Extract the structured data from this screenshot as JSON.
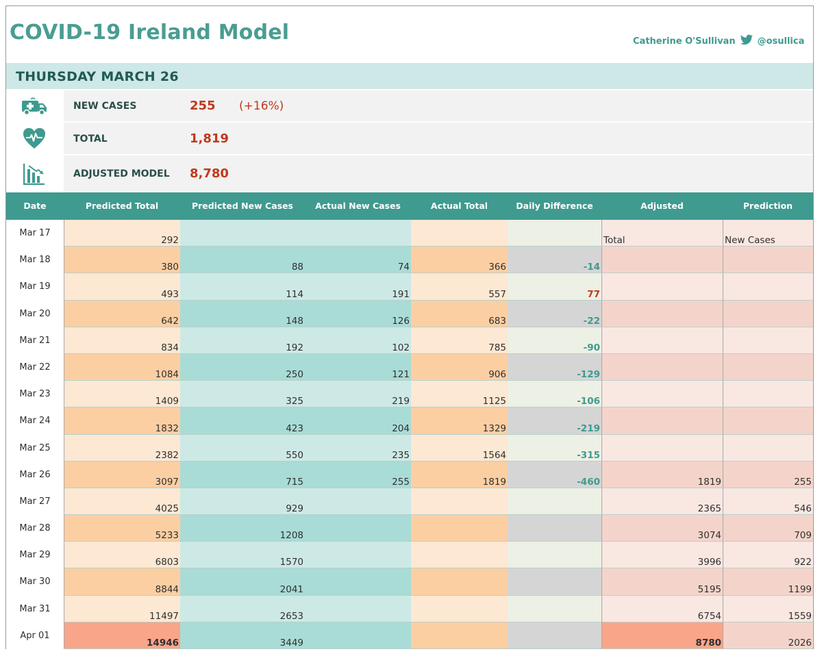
{
  "title": "COVID-19 Ireland Model",
  "author": {
    "name": "Catherine O'Sullivan",
    "handle": "@osullica",
    "icon": "twitter-bird-icon"
  },
  "date_banner": "THURSDAY MARCH 26",
  "kpis": [
    {
      "icon": "ambulance-icon",
      "label": "NEW CASES",
      "value": "255",
      "change": "(+16%)"
    },
    {
      "icon": "heart-pulse-icon",
      "label": "TOTAL",
      "value": "1,819",
      "change": ""
    },
    {
      "icon": "chart-down-icon",
      "label": "ADJUSTED MODEL",
      "value": "8,780",
      "change": ""
    }
  ],
  "table": {
    "headers": [
      "Date",
      "Predicted Total",
      "Predicted New Cases",
      "Actual New Cases",
      "Actual Total",
      "Daily Difference",
      "Adjusted",
      "Prediction"
    ],
    "subheaders": {
      "adjusted": "Total",
      "prediction": "New Cases"
    },
    "rows": [
      {
        "date": "Mar 17",
        "pred_total": "292",
        "pred_new": "",
        "act_new": "",
        "act_total": "",
        "diff": "",
        "adj_total": "",
        "adj_new": ""
      },
      {
        "date": "Mar 18",
        "pred_total": "380",
        "pred_new": "88",
        "act_new": "74",
        "act_total": "366",
        "diff": "-14",
        "adj_total": "",
        "adj_new": ""
      },
      {
        "date": "Mar 19",
        "pred_total": "493",
        "pred_new": "114",
        "act_new": "191",
        "act_total": "557",
        "diff": "77",
        "adj_total": "",
        "adj_new": ""
      },
      {
        "date": "Mar 20",
        "pred_total": "642",
        "pred_new": "148",
        "act_new": "126",
        "act_total": "683",
        "diff": "-22",
        "adj_total": "",
        "adj_new": ""
      },
      {
        "date": "Mar 21",
        "pred_total": "834",
        "pred_new": "192",
        "act_new": "102",
        "act_total": "785",
        "diff": "-90",
        "adj_total": "",
        "adj_new": ""
      },
      {
        "date": "Mar 22",
        "pred_total": "1084",
        "pred_new": "250",
        "act_new": "121",
        "act_total": "906",
        "diff": "-129",
        "adj_total": "",
        "adj_new": ""
      },
      {
        "date": "Mar 23",
        "pred_total": "1409",
        "pred_new": "325",
        "act_new": "219",
        "act_total": "1125",
        "diff": "-106",
        "adj_total": "",
        "adj_new": ""
      },
      {
        "date": "Mar 24",
        "pred_total": "1832",
        "pred_new": "423",
        "act_new": "204",
        "act_total": "1329",
        "diff": "-219",
        "adj_total": "",
        "adj_new": ""
      },
      {
        "date": "Mar 25",
        "pred_total": "2382",
        "pred_new": "550",
        "act_new": "235",
        "act_total": "1564",
        "diff": "-315",
        "adj_total": "",
        "adj_new": ""
      },
      {
        "date": "Mar 26",
        "pred_total": "3097",
        "pred_new": "715",
        "act_new": "255",
        "act_total": "1819",
        "diff": "-460",
        "adj_total": "1819",
        "adj_new": "255"
      },
      {
        "date": "Mar 27",
        "pred_total": "4025",
        "pred_new": "929",
        "act_new": "",
        "act_total": "",
        "diff": "",
        "adj_total": "2365",
        "adj_new": "546"
      },
      {
        "date": "Mar 28",
        "pred_total": "5233",
        "pred_new": "1208",
        "act_new": "",
        "act_total": "",
        "diff": "",
        "adj_total": "3074",
        "adj_new": "709"
      },
      {
        "date": "Mar 29",
        "pred_total": "6803",
        "pred_new": "1570",
        "act_new": "",
        "act_total": "",
        "diff": "",
        "adj_total": "3996",
        "adj_new": "922"
      },
      {
        "date": "Mar 30",
        "pred_total": "8844",
        "pred_new": "2041",
        "act_new": "",
        "act_total": "",
        "diff": "",
        "adj_total": "5195",
        "adj_new": "1199"
      },
      {
        "date": "Mar 31",
        "pred_total": "11497",
        "pred_new": "2653",
        "act_new": "",
        "act_total": "",
        "diff": "",
        "adj_total": "6754",
        "adj_new": "1559"
      },
      {
        "date": "Apr 01",
        "pred_total": "14946",
        "pred_new": "3449",
        "act_new": "",
        "act_total": "",
        "diff": "",
        "adj_total": "8780",
        "adj_new": "2026"
      }
    ]
  },
  "colors": {
    "accent": "#3f9a8f",
    "value_red": "#c0391b",
    "pred_total_light": "#fde8d3",
    "pred_total_dark": "#fccfa3",
    "pred_total_highlight": "#f9a58a",
    "pred_new_light": "#cde9e6",
    "pred_new_dark": "#a9dcd6",
    "act_total_light": "#fde8d3",
    "act_total_dark": "#fccfa3",
    "diff_light": "#edf0e4",
    "diff_dark": "#d5d5d5",
    "adj_light": "#f9e7e2",
    "adj_dark": "#f4d4ca",
    "adj_highlight": "#f9a58a"
  }
}
